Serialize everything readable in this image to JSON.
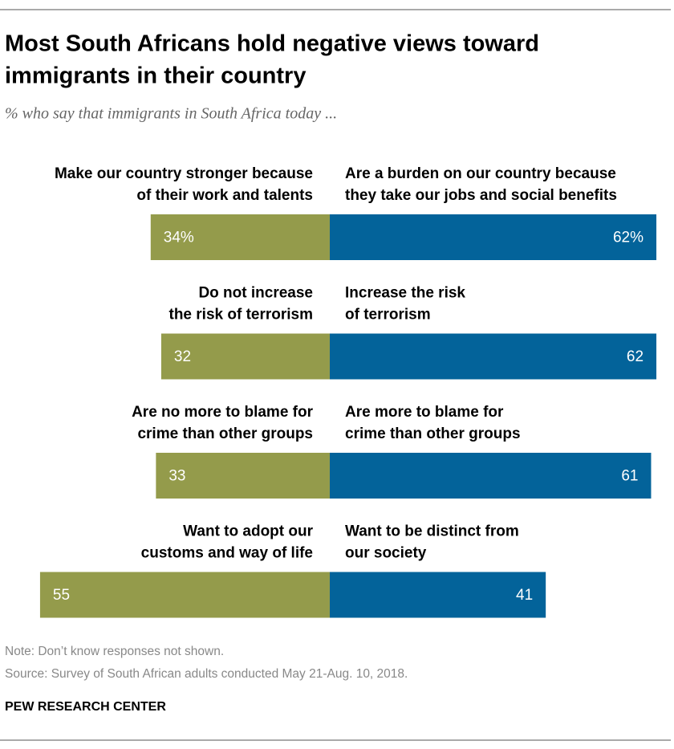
{
  "chart_data": {
    "type": "diverging_bar",
    "title": [
      "Most South Africans hold negative views toward",
      "immigrants in their country"
    ],
    "subtitle": "% who say that immigrants in South Africa today ...",
    "series": [
      {
        "color": "#949b4b",
        "labels": [
          [
            "Make our country stronger because",
            "of their work and talents"
          ],
          [
            "Do not increase",
            "the risk of terrorism"
          ],
          [
            "Are no more to blame for",
            "crime than other groups"
          ],
          [
            "Want to adopt our",
            "customs and way of life"
          ]
        ],
        "values": [
          34,
          32,
          33,
          55
        ],
        "value_labels": [
          "34%",
          "32",
          "33",
          "55"
        ]
      },
      {
        "color": "#03639a",
        "labels": [
          [
            "Are a burden on our country because",
            "they take our jobs and social benefits"
          ],
          [
            "Increase the risk",
            "of terrorism"
          ],
          [
            "Are more to blame for",
            "crime than other groups"
          ],
          [
            "Want to be distinct from",
            "our society"
          ]
        ],
        "values": [
          62,
          62,
          61,
          41
        ],
        "value_labels": [
          "62%",
          "62",
          "61",
          "41"
        ]
      }
    ],
    "note": "Note: Don’t know responses not shown.",
    "source": "Source: Survey of South African adults conducted May 21-Aug. 10, 2018.",
    "credit": "PEW RESEARCH CENTER"
  }
}
